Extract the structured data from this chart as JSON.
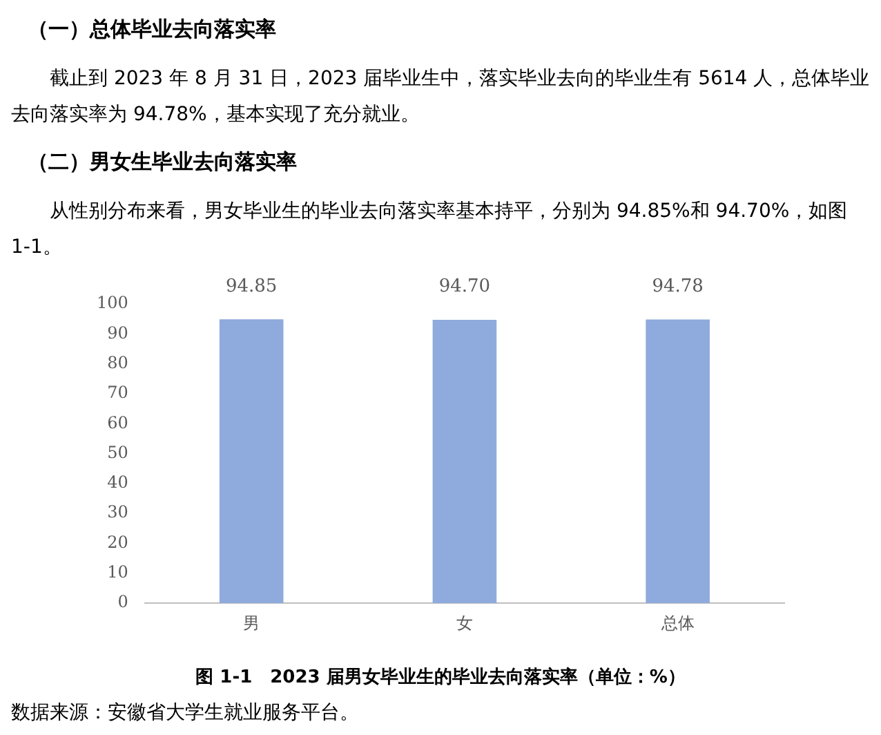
{
  "chart_data": {
    "type": "bar",
    "title": "图 1-1　2023 届男女毕业生的毕业去向落实率（单位：%）",
    "annotations": [
      "（一）总体毕业去向落实率",
      "截止到 2023 年 8 月 31 日，2023 届毕业生中，落实毕业去向的毕业生有 5614 人，总体毕业去向落实率为 94.78%，基本实现了充分就业。",
      "（二）男女生毕业去向落实率",
      "从性别分布来看，男女毕业生的毕业去向落实率基本持平，分别为 94.85%和 94.70%，如图 1-1。",
      "数据来源：安徽省大学生就业服务平台。"
    ],
    "categories": [
      "男",
      "女",
      "总体"
    ],
    "values": [
      94.85,
      94.7,
      94.78
    ],
    "value_labels": [
      "94.85",
      "94.70",
      "94.78"
    ],
    "color": "#8faadc",
    "ylim": [
      0,
      100
    ],
    "yticks": [
      0,
      10,
      20,
      30,
      40,
      50,
      60,
      70,
      80,
      90,
      100
    ],
    "grid": false,
    "legend": false
  }
}
